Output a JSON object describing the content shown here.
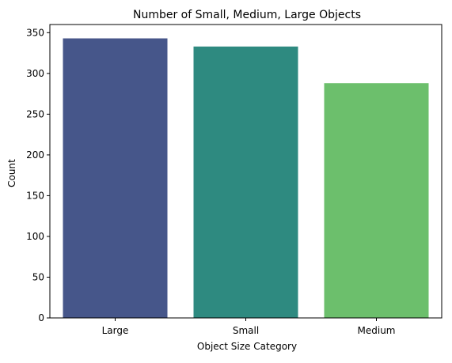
{
  "chart_data": {
    "type": "bar",
    "title": "Number of Small, Medium, Large Objects",
    "xlabel": "Object Size Category",
    "ylabel": "Count",
    "categories": [
      "Large",
      "Small",
      "Medium"
    ],
    "values": [
      343,
      333,
      288
    ],
    "colors": [
      "#46568a",
      "#2e8a80",
      "#6cbf6c"
    ],
    "ylim": [
      0,
      360
    ],
    "yticks": [
      0,
      50,
      100,
      150,
      200,
      250,
      300,
      350
    ],
    "grid": false,
    "legend": "none"
  }
}
